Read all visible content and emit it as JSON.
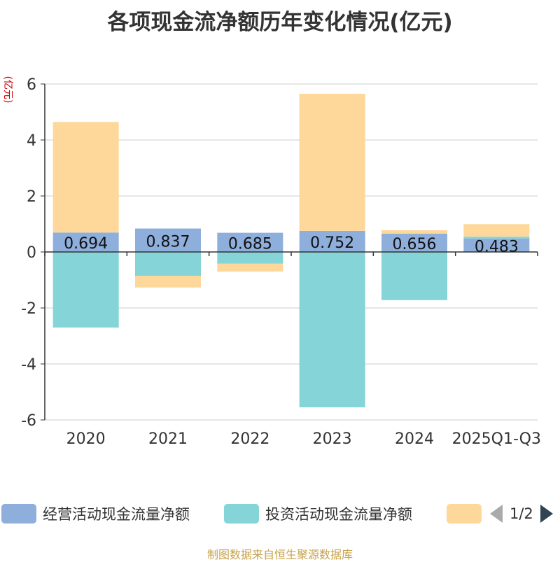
{
  "chart_data": {
    "type": "bar",
    "stacked": true,
    "title": "各项现金流净额历年变化情况(亿元)",
    "ylabel": "(亿元)",
    "ylim": [
      -6,
      6
    ],
    "yticks": [
      6,
      4,
      2,
      0,
      -2,
      -4,
      -6
    ],
    "categories": [
      "2020",
      "2021",
      "2022",
      "2023",
      "2024",
      "2025Q1-Q3"
    ],
    "series": [
      {
        "name": "经营活动现金流量净额",
        "color": "#8eaedc",
        "values": [
          0.694,
          0.837,
          0.685,
          0.752,
          0.656,
          0.483
        ],
        "labels": [
          "0.694",
          "0.837",
          "0.685",
          "0.752",
          "0.656",
          "0.483"
        ]
      },
      {
        "name": "投资活动现金流量净额",
        "color": "#84d4d8",
        "values": [
          -2.7,
          -0.85,
          -0.42,
          -5.55,
          -1.72,
          0.06
        ]
      },
      {
        "name": "",
        "color": "#fdd89a",
        "values": [
          3.95,
          -0.42,
          -0.28,
          4.9,
          0.12,
          0.45
        ]
      }
    ],
    "grid": true,
    "legend_position": "bottom"
  },
  "legend": {
    "page_text": "1/2"
  },
  "source": "制图数据来自恒生聚源数据库",
  "colors": {
    "unit_text": "#cc0000",
    "source_text": "#c8a24a",
    "axis": "#333333",
    "grid": "#cccccc"
  }
}
